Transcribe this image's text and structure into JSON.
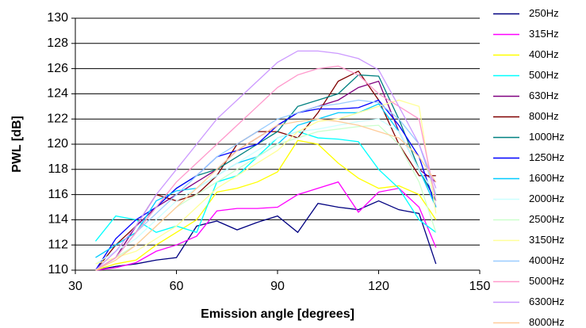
{
  "chart_data": {
    "type": "line",
    "xlabel": "Emission angle [degrees]",
    "ylabel": "PWL [dB]",
    "x": [
      36,
      42,
      48,
      54,
      60,
      66,
      72,
      78,
      84,
      90,
      96,
      102,
      108,
      114,
      120,
      126,
      132,
      137
    ],
    "xlim": [
      30,
      150
    ],
    "xticks": [
      30,
      60,
      90,
      120,
      150
    ],
    "ylim": [
      110,
      130
    ],
    "yticks": [
      110,
      112,
      114,
      116,
      118,
      120,
      122,
      124,
      126,
      128,
      130
    ],
    "grid": true,
    "legend": "right",
    "series": [
      {
        "name": "250Hz",
        "color": "#000080",
        "values": [
          110,
          110.3,
          110.5,
          110.8,
          111,
          113.5,
          113.9,
          113.2,
          113.8,
          114.3,
          113,
          115.3,
          115,
          114.8,
          115.5,
          114.8,
          114.5,
          110.5
        ]
      },
      {
        "name": "315Hz",
        "color": "#ff00ff",
        "values": [
          110,
          110.2,
          110.6,
          111.5,
          112,
          112.7,
          114.7,
          114.9,
          114.9,
          115,
          116,
          116.5,
          117,
          114.6,
          116.2,
          116.5,
          115,
          111.8
        ]
      },
      {
        "name": "400Hz",
        "color": "#ffff00",
        "values": [
          110,
          110.5,
          110.8,
          112,
          113,
          114,
          116.2,
          116.5,
          117,
          117.8,
          120.3,
          120,
          118.5,
          117.3,
          116.5,
          116.7,
          116,
          114
        ]
      },
      {
        "name": "500Hz",
        "color": "#00ffff",
        "values": [
          112.3,
          114.3,
          114,
          113,
          113.5,
          113,
          117,
          117.5,
          119,
          120.5,
          121,
          120.5,
          120.4,
          120.2,
          118,
          116.5,
          114,
          113
        ]
      },
      {
        "name": "630Hz",
        "color": "#800080",
        "values": [
          110,
          111,
          113.5,
          115,
          116,
          117,
          118,
          119.5,
          120.5,
          121.5,
          122.5,
          123,
          123.5,
          124.5,
          125,
          121,
          118,
          117
        ]
      },
      {
        "name": "800Hz",
        "color": "#800000",
        "values": [
          110,
          112,
          113.5,
          116,
          115.5,
          116,
          117.5,
          120,
          121,
          121,
          120.5,
          122.5,
          125,
          125.8,
          123.5,
          120,
          117.5,
          117.5
        ]
      },
      {
        "name": "1000Hz",
        "color": "#008080",
        "values": [
          110,
          111,
          113,
          115,
          116.5,
          117.5,
          118,
          119,
          120,
          121,
          123,
          123.5,
          124,
          125.5,
          125.4,
          122,
          118,
          115.5
        ]
      },
      {
        "name": "1250Hz",
        "color": "#0000ff",
        "values": [
          110,
          112.5,
          114,
          115,
          116.5,
          117.5,
          119,
          119.5,
          120,
          121.5,
          122.5,
          122.8,
          122.8,
          122.9,
          123.5,
          121.5,
          119,
          115
        ]
      },
      {
        "name": "1600Hz",
        "color": "#00ccff",
        "values": [
          111,
          112,
          113,
          115.5,
          116.3,
          116.5,
          117.5,
          118.5,
          119,
          120,
          121.5,
          122,
          122.5,
          122.5,
          123.2,
          121,
          118,
          115
        ]
      },
      {
        "name": "2000Hz",
        "color": "#ccffff",
        "values": [
          110.5,
          111.5,
          112.5,
          114,
          115.5,
          116.5,
          117.5,
          118.5,
          119.5,
          120.5,
          121,
          121.2,
          121.5,
          121.8,
          122,
          121,
          118,
          116
        ]
      },
      {
        "name": "2500Hz",
        "color": "#ccffcc",
        "values": [
          110,
          111,
          112,
          113.5,
          115,
          116,
          117,
          118,
          119,
          120,
          120.5,
          121,
          121.2,
          121.4,
          121.5,
          120,
          117,
          113
        ]
      },
      {
        "name": "3150Hz",
        "color": "#ffff99",
        "values": [
          110.5,
          111,
          111.5,
          112.5,
          113.5,
          115,
          116.5,
          117.5,
          118.5,
          119.5,
          121,
          121.8,
          122,
          122.5,
          123,
          123.5,
          123,
          114.5
        ]
      },
      {
        "name": "4000Hz",
        "color": "#99ccff",
        "values": [
          110,
          111,
          113,
          114.5,
          116,
          117.5,
          119,
          120,
          121,
          122,
          122.5,
          123,
          123.2,
          123.5,
          123.3,
          122,
          120,
          116
        ]
      },
      {
        "name": "5000Hz",
        "color": "#ff99cc",
        "values": [
          110,
          111,
          113,
          115,
          117,
          118.5,
          120,
          121.5,
          123,
          124.5,
          125.5,
          126,
          126.2,
          125.5,
          124,
          123,
          122,
          115.5
        ]
      },
      {
        "name": "6300Hz",
        "color": "#cc99ff",
        "values": [
          110,
          111.5,
          113.5,
          116,
          118,
          120,
          122,
          123.5,
          125,
          126.5,
          127.4,
          127.4,
          127.2,
          126.8,
          125.9,
          123,
          120,
          116.5
        ]
      },
      {
        "name": "8000Hz",
        "color": "#ffcc99",
        "values": [
          110,
          110.8,
          112,
          113.5,
          115,
          116.5,
          118,
          119.5,
          120.5,
          121.5,
          121.8,
          122,
          121.8,
          121.5,
          121,
          120.5,
          119,
          117
        ]
      }
    ]
  }
}
